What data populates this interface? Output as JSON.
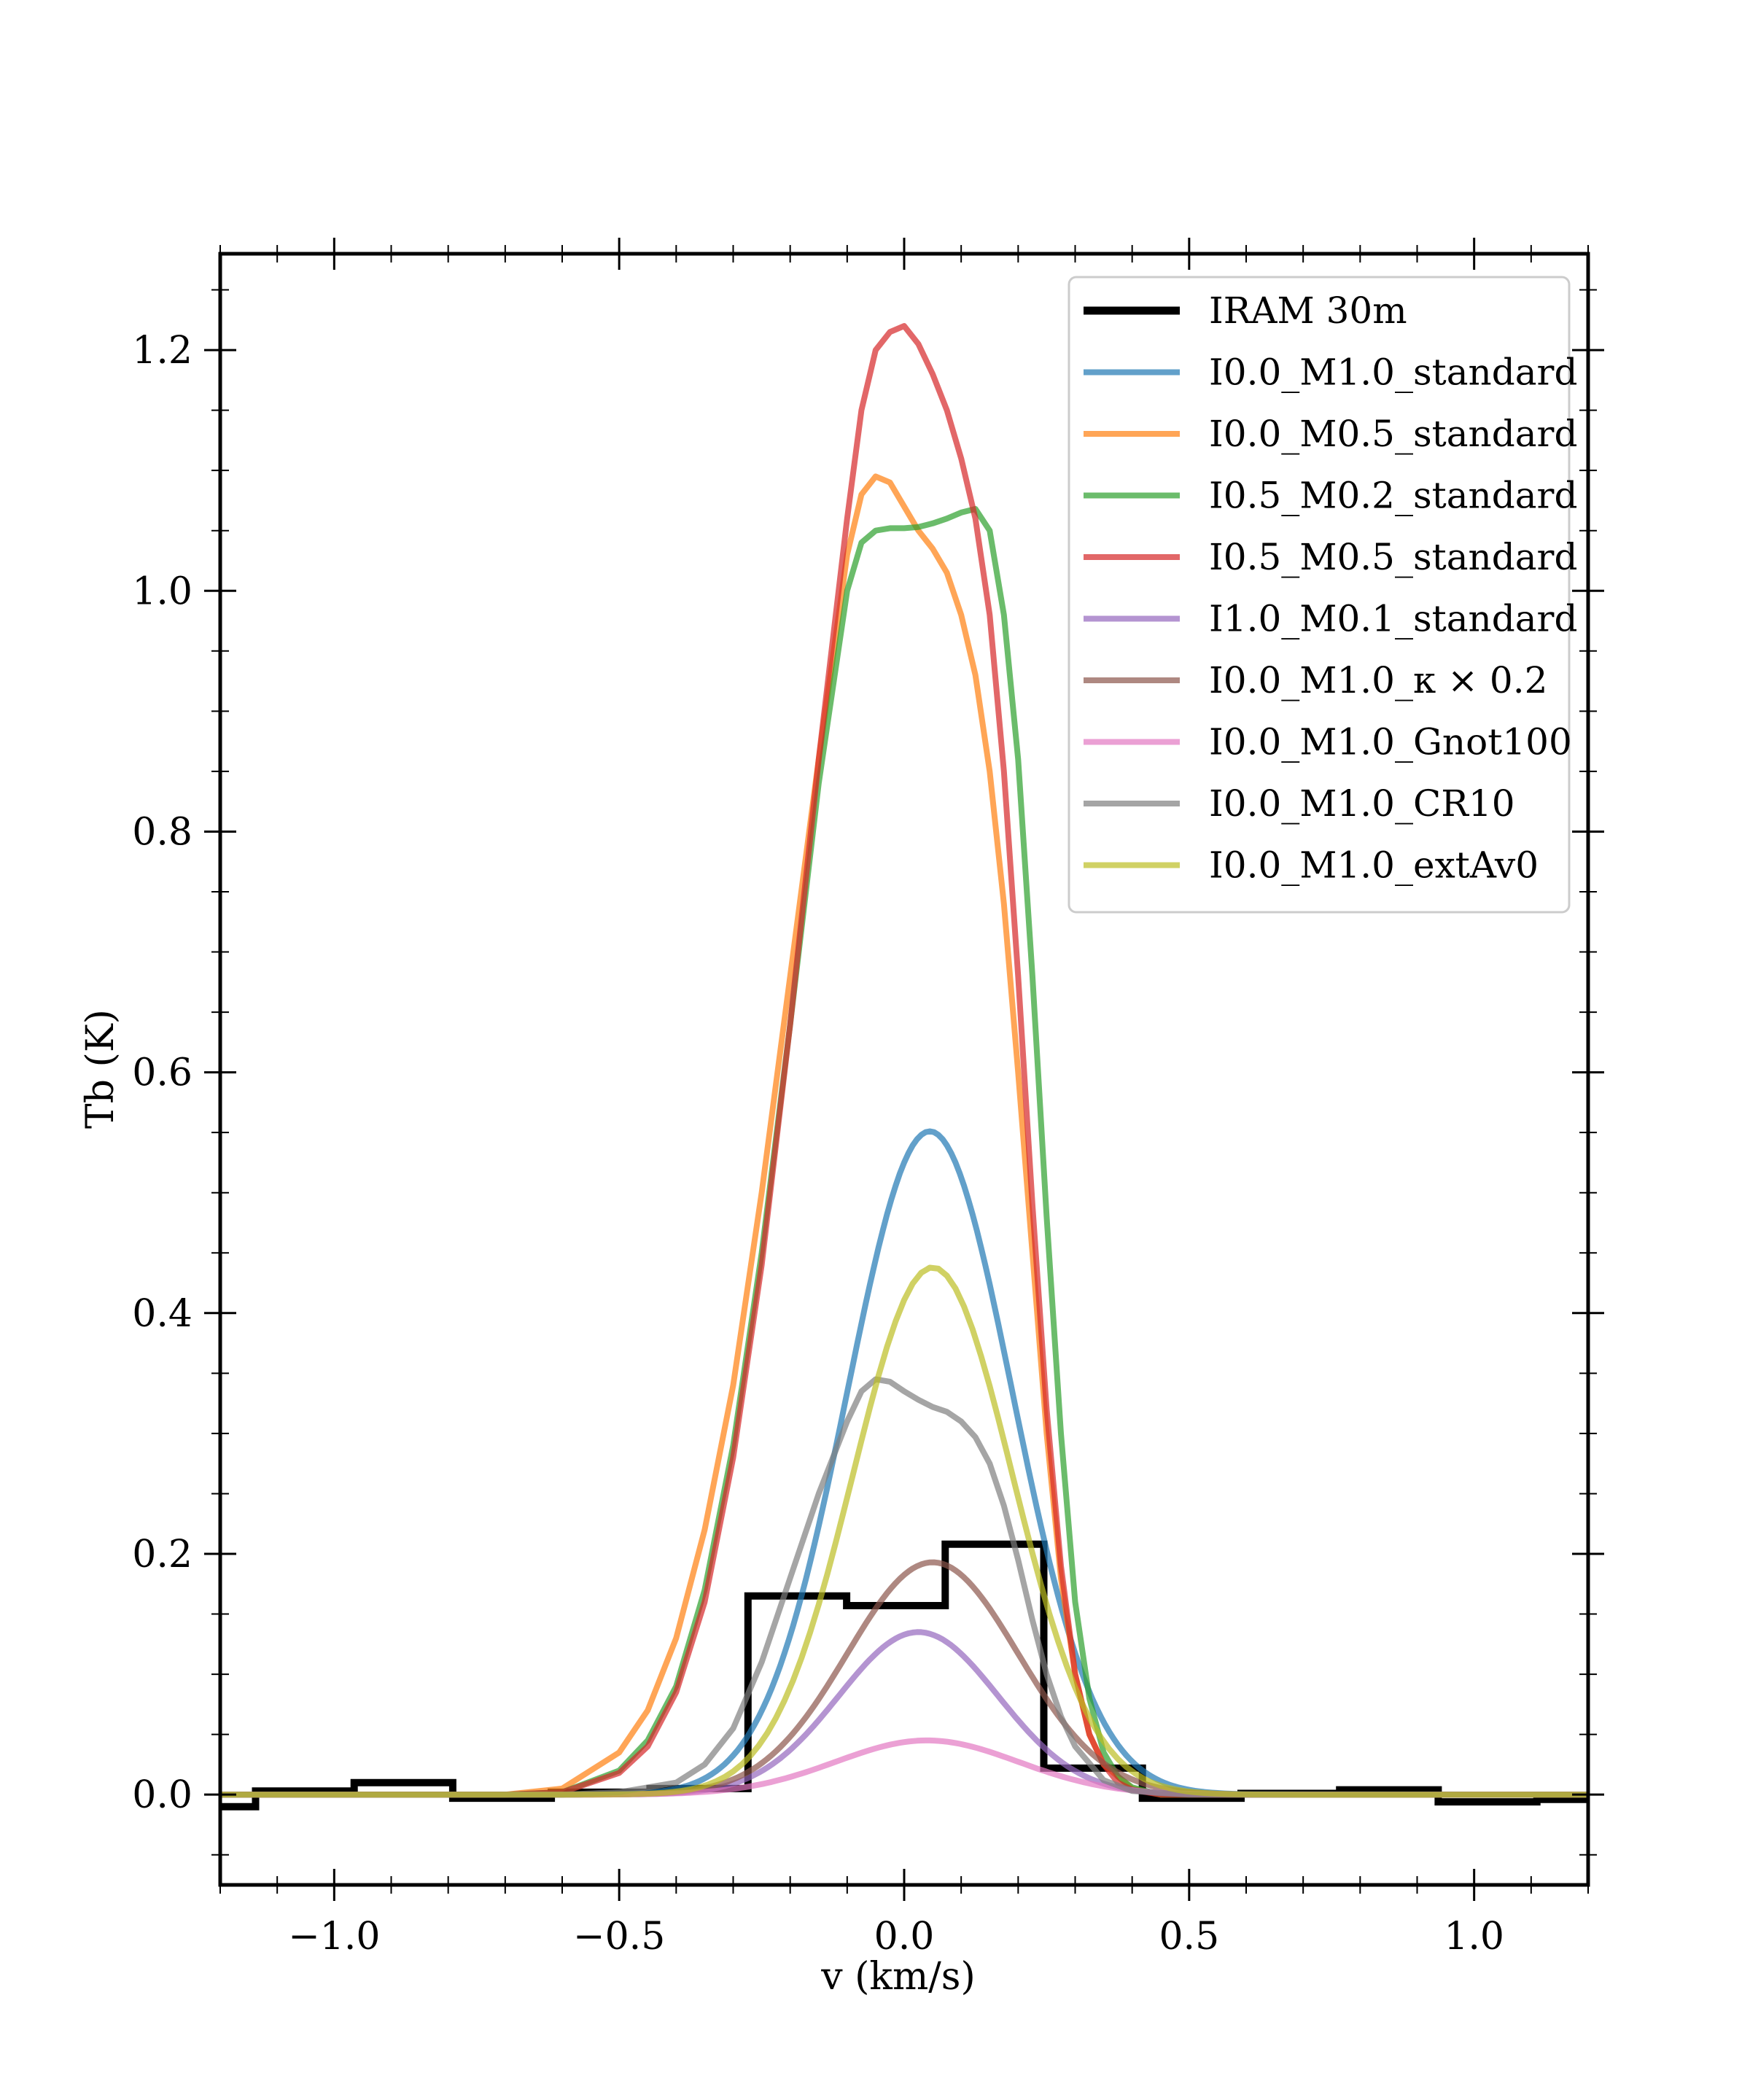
{
  "chart_data": {
    "type": "line",
    "title": "",
    "xlabel": "v (km/s)",
    "ylabel": "Tb (K)",
    "xlim": [
      -1.2,
      1.2
    ],
    "ylim": [
      -0.075,
      1.28
    ],
    "x_ticks": [
      -1.0,
      -0.5,
      0.0,
      0.5,
      1.0
    ],
    "x_tick_labels": [
      "−1.0",
      "−0.5",
      "0.0",
      "0.5",
      "1.0"
    ],
    "y_ticks": [
      0.0,
      0.2,
      0.4,
      0.6,
      0.8,
      1.0,
      1.2
    ],
    "y_tick_labels": [
      "0.0",
      "0.2",
      "0.4",
      "0.6",
      "0.8",
      "1.0",
      "1.2"
    ],
    "legend_position": "top-right",
    "observed": {
      "name": "IRAM 30m",
      "color": "#000000",
      "style": "step",
      "edges": [
        -1.2,
        -1.138,
        -0.965,
        -0.792,
        -0.619,
        -0.446,
        -0.274,
        -0.101,
        0.072,
        0.245,
        0.418,
        0.591,
        0.764,
        0.937,
        1.11,
        1.2
      ],
      "values": [
        -0.01,
        0.003,
        0.01,
        -0.003,
        0.002,
        0.005,
        0.165,
        0.157,
        0.208,
        0.022,
        -0.003,
        0.001,
        0.004,
        -0.006,
        -0.004
      ]
    },
    "series": [
      {
        "name": "I0.0_M1.0_standard",
        "color": "#1f77b4",
        "shape": "gauss",
        "amp": 0.551,
        "center": 0.045,
        "sigma": 0.145,
        "x_start": -0.6,
        "x_end": 0.6
      },
      {
        "name": "I0.0_M0.5_standard",
        "color": "#ff7f0e",
        "x": [
          -1.2,
          -0.7,
          -0.6,
          -0.5,
          -0.45,
          -0.4,
          -0.35,
          -0.3,
          -0.25,
          -0.2,
          -0.15,
          -0.1,
          -0.075,
          -0.05,
          -0.025,
          0.0,
          0.025,
          0.05,
          0.075,
          0.1,
          0.125,
          0.15,
          0.175,
          0.2,
          0.225,
          0.25,
          0.275,
          0.3,
          0.325,
          0.35,
          0.4,
          0.45,
          0.5,
          0.6,
          1.2
        ],
        "values": [
          0,
          0,
          0.005,
          0.035,
          0.07,
          0.13,
          0.22,
          0.34,
          0.5,
          0.68,
          0.86,
          1.03,
          1.08,
          1.095,
          1.09,
          1.07,
          1.05,
          1.035,
          1.015,
          0.98,
          0.93,
          0.85,
          0.74,
          0.6,
          0.45,
          0.3,
          0.18,
          0.1,
          0.05,
          0.025,
          0.005,
          0,
          0,
          0,
          0
        ]
      },
      {
        "name": "I0.5_M0.2_standard",
        "color": "#2ca02c",
        "x": [
          -1.2,
          -0.7,
          -0.6,
          -0.5,
          -0.45,
          -0.4,
          -0.35,
          -0.3,
          -0.25,
          -0.2,
          -0.15,
          -0.1,
          -0.075,
          -0.05,
          -0.025,
          0.0,
          0.025,
          0.05,
          0.075,
          0.1,
          0.125,
          0.15,
          0.175,
          0.2,
          0.225,
          0.25,
          0.275,
          0.3,
          0.325,
          0.35,
          0.375,
          0.4,
          0.45,
          0.5,
          0.6,
          1.2
        ],
        "values": [
          0,
          0,
          0.002,
          0.02,
          0.045,
          0.09,
          0.17,
          0.29,
          0.45,
          0.64,
          0.84,
          1.0,
          1.04,
          1.05,
          1.052,
          1.052,
          1.053,
          1.056,
          1.06,
          1.065,
          1.068,
          1.05,
          0.98,
          0.86,
          0.68,
          0.48,
          0.3,
          0.16,
          0.08,
          0.035,
          0.015,
          0.006,
          0,
          0,
          0,
          0
        ]
      },
      {
        "name": "I0.5_M0.5_standard",
        "color": "#d62728",
        "x": [
          -1.2,
          -0.7,
          -0.6,
          -0.5,
          -0.45,
          -0.4,
          -0.35,
          -0.3,
          -0.25,
          -0.2,
          -0.15,
          -0.1,
          -0.075,
          -0.05,
          -0.025,
          0.0,
          0.025,
          0.05,
          0.075,
          0.1,
          0.125,
          0.15,
          0.175,
          0.2,
          0.225,
          0.25,
          0.275,
          0.3,
          0.325,
          0.35,
          0.375,
          0.4,
          0.45,
          0.5,
          0.6,
          1.2
        ],
        "values": [
          0,
          0,
          0.002,
          0.018,
          0.04,
          0.085,
          0.16,
          0.28,
          0.44,
          0.64,
          0.86,
          1.06,
          1.15,
          1.2,
          1.215,
          1.22,
          1.205,
          1.18,
          1.15,
          1.11,
          1.06,
          0.98,
          0.85,
          0.68,
          0.49,
          0.32,
          0.19,
          0.1,
          0.05,
          0.025,
          0.01,
          0.004,
          0,
          0,
          0,
          0
        ]
      },
      {
        "name": "I1.0_M0.1_standard",
        "color": "#9467bd",
        "shape": "gauss",
        "amp": 0.135,
        "center": 0.025,
        "sigma": 0.14,
        "x_start": -0.6,
        "x_end": 0.6
      },
      {
        "name": "I0.0_M1.0_κ × 0.2",
        "color": "#8c564b",
        "shape": "gauss",
        "amp": 0.193,
        "center": 0.05,
        "sigma": 0.15,
        "x_start": -0.6,
        "x_end": 0.6
      },
      {
        "name": "I0.0_M1.0_Gnot100",
        "color": "#e377c2",
        "shape": "gauss",
        "amp": 0.045,
        "center": 0.04,
        "sigma": 0.16,
        "x_start": -0.6,
        "x_end": 0.6
      },
      {
        "name": "I0.0_M1.0_CR10",
        "color": "#7f7f7f",
        "x": [
          -1.2,
          -0.6,
          -0.5,
          -0.4,
          -0.35,
          -0.3,
          -0.25,
          -0.2,
          -0.15,
          -0.1,
          -0.075,
          -0.05,
          -0.025,
          0.0,
          0.025,
          0.05,
          0.075,
          0.1,
          0.125,
          0.15,
          0.175,
          0.2,
          0.225,
          0.25,
          0.275,
          0.3,
          0.35,
          0.4,
          0.5,
          0.6,
          1.2
        ],
        "values": [
          0,
          0,
          0.002,
          0.01,
          0.025,
          0.055,
          0.11,
          0.18,
          0.25,
          0.31,
          0.335,
          0.345,
          0.343,
          0.335,
          0.328,
          0.322,
          0.318,
          0.31,
          0.297,
          0.275,
          0.24,
          0.195,
          0.145,
          0.1,
          0.065,
          0.04,
          0.012,
          0.003,
          0,
          0,
          0
        ]
      },
      {
        "name": "I0.0_M1.0_extAv0",
        "color": "#bcbd22",
        "shape": "gauss",
        "amp": 0.438,
        "center": 0.05,
        "sigma": 0.14,
        "x_start": -1.2,
        "x_end": 1.2
      }
    ]
  }
}
